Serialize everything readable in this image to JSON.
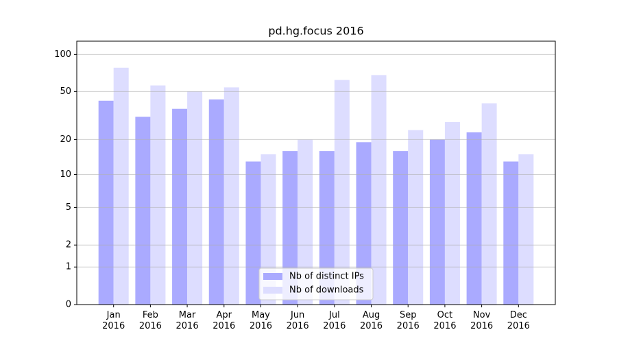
{
  "chart_data": {
    "type": "bar",
    "title": "pd.hg.focus 2016",
    "categories": [
      "Jan\n2016",
      "Feb\n2016",
      "Mar\n2016",
      "Apr\n2016",
      "May\n2016",
      "Jun\n2016",
      "Jul\n2016",
      "Aug\n2016",
      "Sep\n2016",
      "Oct\n2016",
      "Nov\n2016",
      "Dec\n2016"
    ],
    "series": [
      {
        "name": "Nb of distinct IPs",
        "color": "#aaaaff",
        "values": [
          42,
          31,
          36,
          43,
          13,
          16,
          16,
          19,
          16,
          20,
          23,
          13
        ]
      },
      {
        "name": "Nb of downloads",
        "color": "#ddddff",
        "values": [
          78,
          56,
          50,
          54,
          15,
          20,
          62,
          68,
          24,
          28,
          40,
          15
        ]
      }
    ],
    "scale": "log1p",
    "ylim": [
      0,
      128
    ],
    "yticks": [
      0,
      1,
      2,
      5,
      10,
      20,
      50,
      100
    ],
    "grid": true,
    "legend": "lower center"
  }
}
